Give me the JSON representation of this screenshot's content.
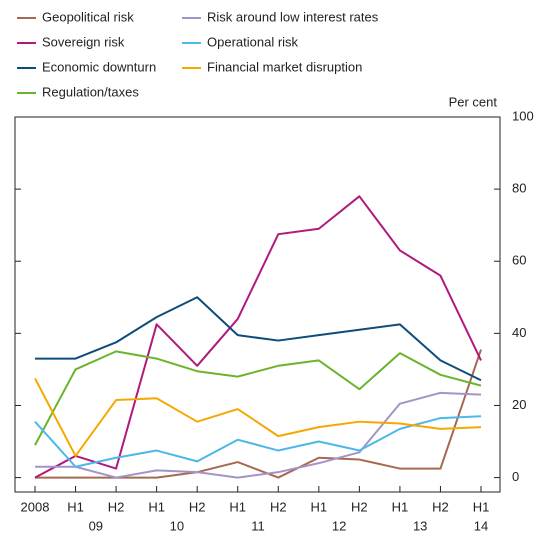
{
  "chart_data": {
    "type": "line",
    "unit_label": "Per cent",
    "categories": [
      "2008",
      "H1",
      "H2",
      "H1",
      "H2",
      "H1",
      "H2",
      "H1",
      "H2",
      "H1",
      "H2",
      "H1"
    ],
    "groups": [
      {
        "label": "09",
        "categories": [
          1,
          2
        ]
      },
      {
        "label": "10",
        "categories": [
          3,
          4
        ]
      },
      {
        "label": "11",
        "categories": [
          5,
          6
        ]
      },
      {
        "label": "12",
        "categories": [
          7,
          8
        ]
      },
      {
        "label": "13",
        "categories": [
          9,
          10
        ]
      },
      {
        "label": "14",
        "categories": [
          11
        ]
      }
    ],
    "ylim": [
      -4,
      100
    ],
    "yticks": [
      0,
      20,
      40,
      60,
      80,
      100
    ],
    "series": [
      {
        "name": "Geopolitical risk",
        "color": "#a5694f",
        "values": [
          0,
          0,
          0,
          0,
          1.5,
          4.3,
          0,
          5.5,
          5,
          2.5,
          2.5,
          35.5
        ]
      },
      {
        "name": "Sovereign risk",
        "color": "#b0197e",
        "values": [
          0,
          6,
          2.5,
          42.5,
          31,
          44,
          67.5,
          69,
          78,
          63,
          56,
          32.5
        ]
      },
      {
        "name": "Economic downturn",
        "color": "#0e4c7a",
        "values": [
          33,
          33,
          37.5,
          44.5,
          50,
          39.5,
          38,
          39.5,
          41,
          42.5,
          32.5,
          27
        ]
      },
      {
        "name": "Regulation/taxes",
        "color": "#6ab42d",
        "values": [
          9,
          30,
          35,
          33,
          29.5,
          28,
          31,
          32.5,
          24.5,
          34.5,
          28.5,
          25.5
        ]
      },
      {
        "name": "Risk around low interest rates",
        "color": "#a493c9",
        "values": [
          3,
          3,
          0,
          2,
          1.5,
          0,
          1.5,
          4,
          7,
          20.5,
          23.5,
          23
        ]
      },
      {
        "name": "Operational risk",
        "color": "#4cb8e8",
        "values": [
          15.5,
          3,
          5.5,
          7.5,
          4.5,
          10.5,
          7.5,
          10,
          7.5,
          13.5,
          16.5,
          17
        ]
      },
      {
        "name": "Financial market disruption",
        "color": "#f5a800",
        "values": [
          27.5,
          6,
          21.5,
          22,
          15.5,
          19,
          11.5,
          14,
          15.5,
          15,
          13.5,
          14
        ]
      }
    ]
  }
}
